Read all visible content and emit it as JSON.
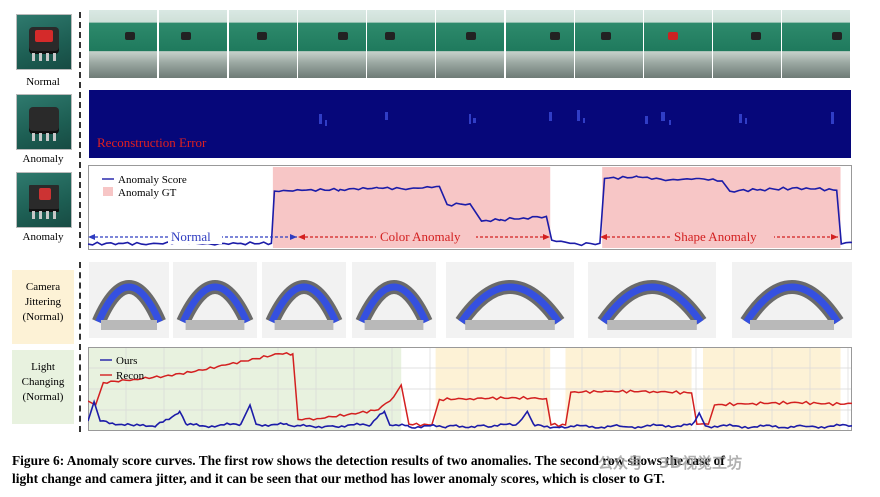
{
  "labels": {
    "normal": "Normal",
    "anomaly_1": "Anomaly",
    "anomaly_2": "Anomaly",
    "camera": [
      "Camera",
      "Jittering",
      "(Normal)"
    ],
    "light": [
      "Light",
      "Changing",
      "(Normal)"
    ],
    "recon_error": "Reconstruction Error"
  },
  "colors": {
    "recon_bg": "#06077a",
    "score_line": "#1c1ca8",
    "gt_fill": "#f7c6c6",
    "arrow": "#2f3cc0",
    "arrow_red": "#d32020",
    "recon_line": "#d32020",
    "green_bg": "#e8f2df",
    "yellow_bg": "#fdf2d6"
  },
  "score_chart": {
    "legend": [
      "Anomaly Score",
      "Anomaly GT"
    ],
    "segments": [
      "Normal",
      "Color Anomaly",
      "Shape Anomaly"
    ],
    "x_range": [
      0,
      1000
    ],
    "y_range": [
      0,
      1
    ],
    "gt_intervals": [
      [
        242,
        605
      ],
      [
        673,
        985
      ]
    ],
    "score": [
      [
        0,
        0.05
      ],
      [
        40,
        0.06
      ],
      [
        80,
        0.05
      ],
      [
        120,
        0.07
      ],
      [
        160,
        0.05
      ],
      [
        200,
        0.06
      ],
      [
        240,
        0.06
      ],
      [
        244,
        0.72
      ],
      [
        280,
        0.73
      ],
      [
        330,
        0.74
      ],
      [
        380,
        0.76
      ],
      [
        420,
        0.75
      ],
      [
        460,
        0.78
      ],
      [
        470,
        0.55
      ],
      [
        500,
        0.56
      ],
      [
        515,
        0.34
      ],
      [
        540,
        0.36
      ],
      [
        570,
        0.38
      ],
      [
        600,
        0.4
      ],
      [
        607,
        0.1
      ],
      [
        640,
        0.05
      ],
      [
        670,
        0.06
      ],
      [
        676,
        0.88
      ],
      [
        720,
        0.9
      ],
      [
        760,
        0.86
      ],
      [
        800,
        0.88
      ],
      [
        830,
        0.85
      ],
      [
        840,
        0.72
      ],
      [
        880,
        0.74
      ],
      [
        940,
        0.76
      ],
      [
        980,
        0.73
      ],
      [
        986,
        0.05
      ],
      [
        1000,
        0.07
      ]
    ]
  },
  "light_chart": {
    "legend": [
      "Ours",
      "Recon"
    ],
    "x_range": [
      0,
      1000
    ],
    "y_range": [
      0,
      1
    ],
    "green_interval": [
      0,
      410
    ],
    "yellow_intervals": [
      [
        455,
        605
      ],
      [
        625,
        790
      ],
      [
        805,
        985
      ]
    ],
    "recon": [
      [
        0,
        0.35
      ],
      [
        10,
        0.3
      ],
      [
        20,
        0.58
      ],
      [
        60,
        0.62
      ],
      [
        100,
        0.66
      ],
      [
        140,
        0.72
      ],
      [
        180,
        0.8
      ],
      [
        220,
        0.88
      ],
      [
        250,
        0.94
      ],
      [
        268,
        0.94
      ],
      [
        275,
        0.12
      ],
      [
        300,
        0.13
      ],
      [
        340,
        0.18
      ],
      [
        380,
        0.24
      ],
      [
        400,
        0.4
      ],
      [
        410,
        0.55
      ],
      [
        420,
        0.06
      ],
      [
        450,
        0.05
      ],
      [
        460,
        0.37
      ],
      [
        500,
        0.38
      ],
      [
        560,
        0.39
      ],
      [
        600,
        0.38
      ],
      [
        606,
        0.05
      ],
      [
        625,
        0.05
      ],
      [
        632,
        0.46
      ],
      [
        680,
        0.47
      ],
      [
        740,
        0.47
      ],
      [
        790,
        0.45
      ],
      [
        797,
        0.06
      ],
      [
        812,
        0.06
      ],
      [
        820,
        0.3
      ],
      [
        870,
        0.32
      ],
      [
        930,
        0.33
      ],
      [
        985,
        0.31
      ],
      [
        1000,
        0.32
      ]
    ],
    "ours": [
      [
        0,
        0.1
      ],
      [
        8,
        0.34
      ],
      [
        16,
        0.1
      ],
      [
        60,
        0.04
      ],
      [
        90,
        0.05
      ],
      [
        120,
        0.22
      ],
      [
        130,
        0.05
      ],
      [
        170,
        0.04
      ],
      [
        200,
        0.06
      ],
      [
        212,
        0.3
      ],
      [
        220,
        0.06
      ],
      [
        262,
        0.05
      ],
      [
        270,
        0.03
      ],
      [
        320,
        0.04
      ],
      [
        370,
        0.05
      ],
      [
        388,
        0.22
      ],
      [
        395,
        0.05
      ],
      [
        420,
        0.03
      ],
      [
        470,
        0.03
      ],
      [
        520,
        0.04
      ],
      [
        560,
        0.05
      ],
      [
        575,
        0.22
      ],
      [
        585,
        0.04
      ],
      [
        620,
        0.03
      ],
      [
        700,
        0.03
      ],
      [
        760,
        0.04
      ],
      [
        790,
        0.05
      ],
      [
        800,
        0.2
      ],
      [
        808,
        0.04
      ],
      [
        860,
        0.03
      ],
      [
        940,
        0.03
      ],
      [
        1000,
        0.04
      ]
    ]
  },
  "caption": {
    "line1": "Figure 6: Anomaly score curves. The first row shows the detection results of two anomalies. The second row shows the case of",
    "line2": "light change and camera jitter, and it can be seen that our method has lower anomaly scores, which is closer to GT."
  },
  "watermark": "公众号 · 3D视觉工坊"
}
